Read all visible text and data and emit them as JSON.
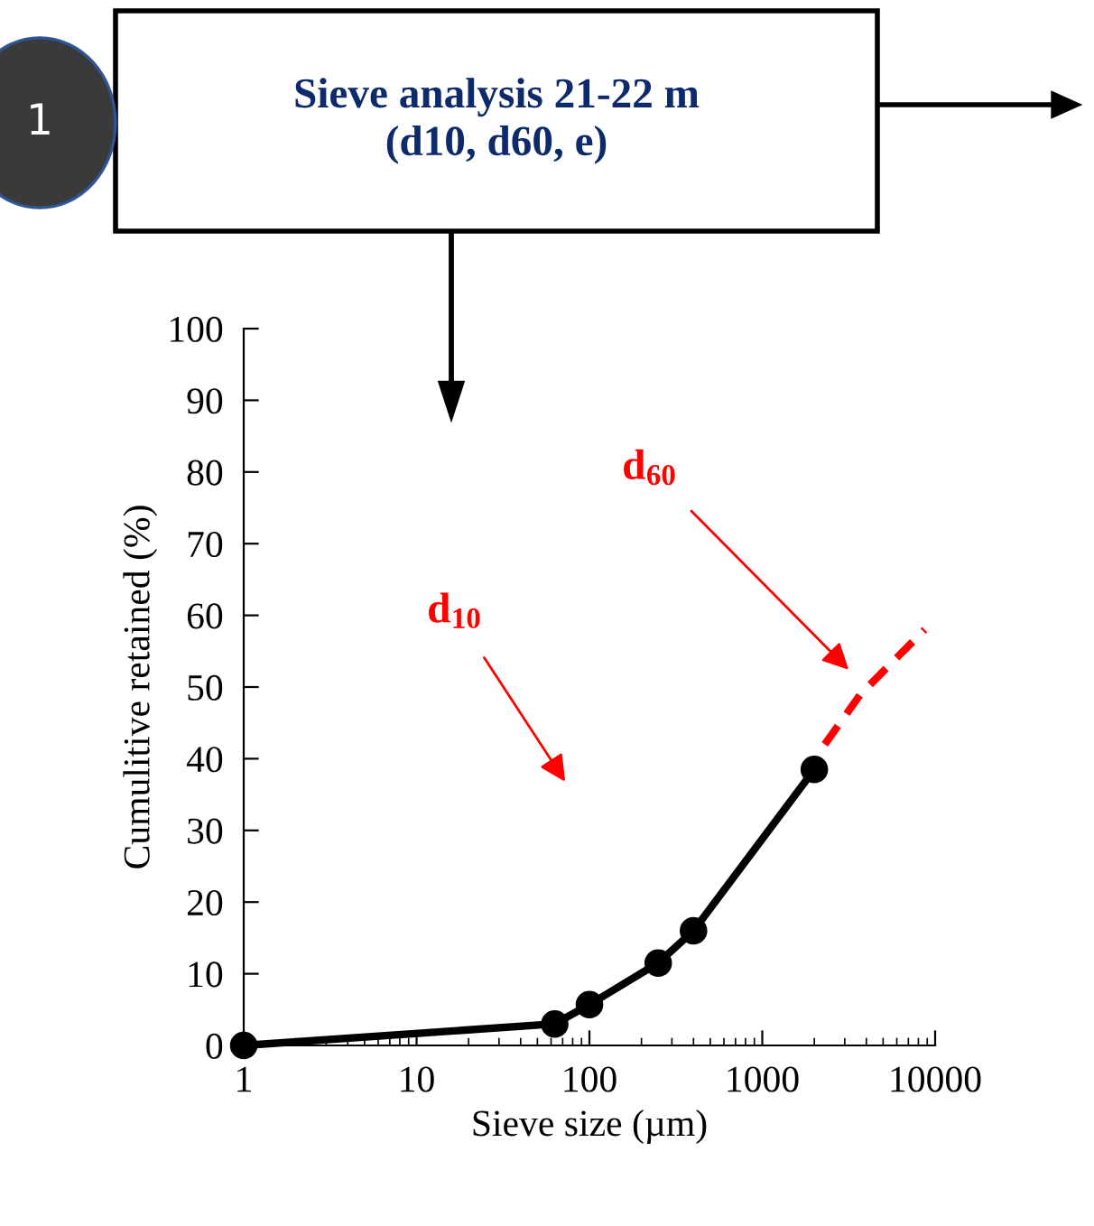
{
  "chart_data": {
    "type": "line",
    "title": "Sieve analysis 21-22 m\n(d10, d60, e)",
    "xlabel": "Sieve size (µm)",
    "ylabel": "Cumulitive retained (%)",
    "series": [
      {
        "color": "#000000",
        "x": [
          1,
          63,
          100,
          250,
          400,
          2000
        ],
        "values": [
          0,
          3,
          5.7,
          11.5,
          16,
          38.5
        ],
        "marker": "circle",
        "line_style": "solid"
      },
      {
        "color": "#ff0000",
        "x": [
          2300,
          3700,
          8700
        ],
        "values": [
          42,
          49,
          58
        ],
        "marker": "none",
        "line_style": "dashed"
      }
    ],
    "annotations": [
      "d$_{10}$",
      "d$_{60}$",
      "1"
    ],
    "log": "x",
    "xlim": [
      1,
      10000
    ],
    "xticks": [
      1,
      10,
      100,
      1000,
      10000
    ],
    "ylim": [
      0,
      100
    ],
    "yticks": [
      0,
      10,
      20,
      30,
      40,
      50,
      60,
      70,
      80,
      90,
      100
    ],
    "grid": false,
    "legend": false
  }
}
